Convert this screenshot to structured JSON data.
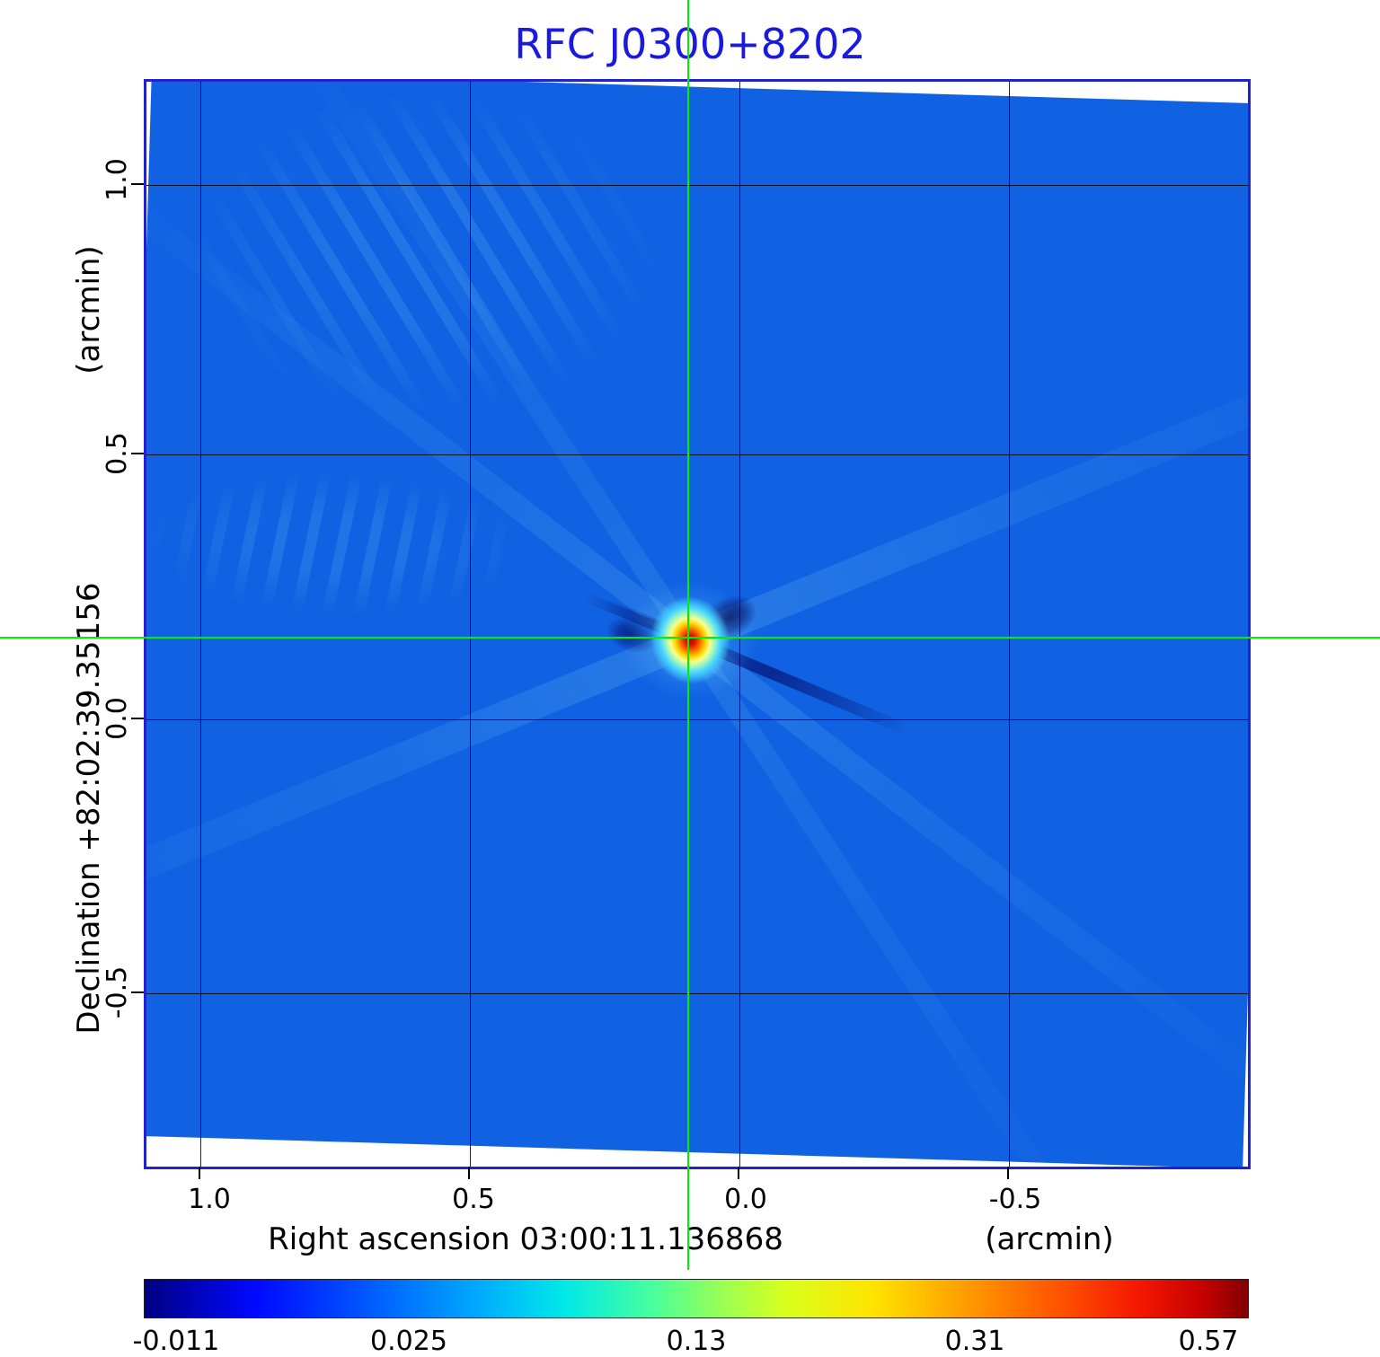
{
  "title": "RFC J0300+8202",
  "axes": {
    "y": {
      "unit": "(arcmin)",
      "title": "Declination  +82:02:39.35156",
      "ticks": [
        "1.0",
        "0.5",
        "0.0",
        "-0.5"
      ]
    },
    "x": {
      "title": "Right ascension  03:00:11.136868",
      "unit": "(arcmin)",
      "ticks": [
        "1.0",
        "0.5",
        "0.0",
        "-0.5"
      ]
    }
  },
  "colorbar": {
    "ticks": [
      "-0.011",
      "0.025",
      "0.13",
      "0.31",
      "0.57"
    ]
  },
  "colors": {
    "title_text": "#1a1adf",
    "frame_border": "#2222cc",
    "map_background": "#1162e2",
    "crosshair": "#00f000",
    "peak": "#c40000"
  },
  "chart_data": {
    "type": "heatmap",
    "title": "RFC J0300+8202",
    "xlabel": "Right ascension 03:00:11.136868 (arcmin)",
    "ylabel": "Declination +82:02:39.35156 (arcmin)",
    "x_ticks_arcmin": [
      1.0,
      0.5,
      0.0,
      -0.5
    ],
    "y_ticks_arcmin": [
      1.0,
      0.5,
      0.0,
      -0.5
    ],
    "x_range_arcmin": [
      1.1,
      -0.95
    ],
    "y_range_arcmin": [
      -0.83,
      1.19
    ],
    "colormap": "jet",
    "colorbar_ticks": [
      -0.011,
      0.025,
      0.13,
      0.31,
      0.57
    ],
    "background_level": 0.0,
    "peak": {
      "x_arcmin": 0.09,
      "y_arcmin": 0.15,
      "value": 0.57
    },
    "crosshair_at_peak": true,
    "grid": true,
    "legend_position": "none",
    "notes": "VLBI dirty-map style image: uniform low-level blue field, bright compact source at crosshair with yellow/red core, dark negative sidelobes and faint diagonal ray artifacts"
  }
}
